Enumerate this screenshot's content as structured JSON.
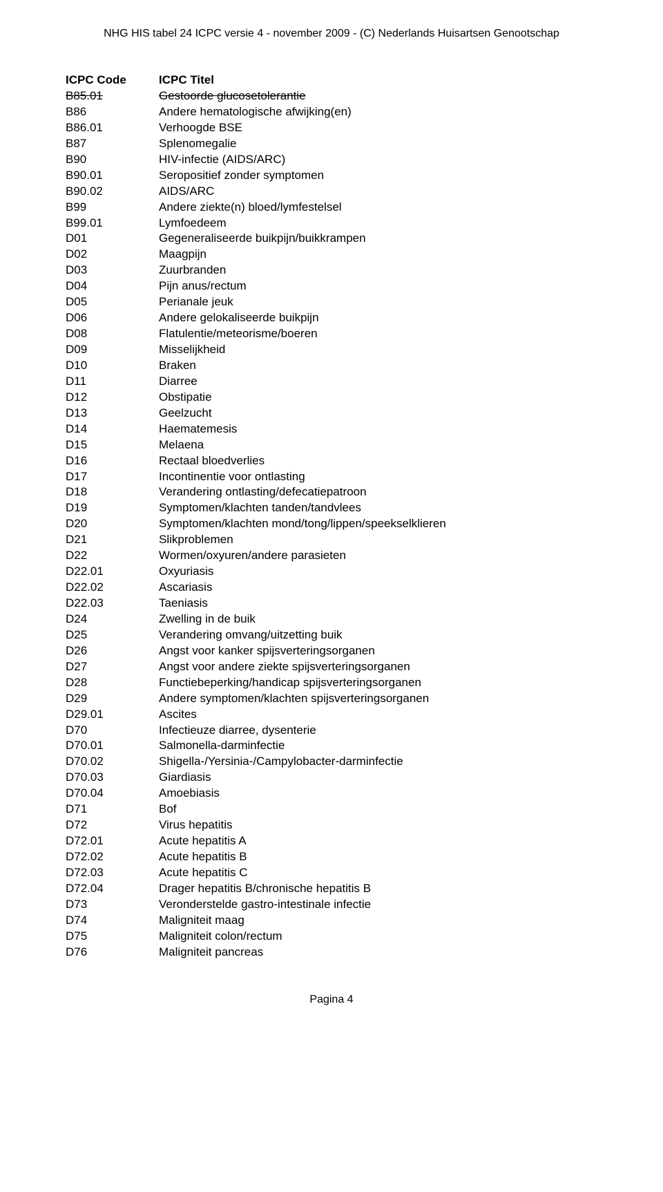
{
  "header": "NHG HIS tabel 24 ICPC versie 4 - november 2009 - (C) Nederlands Huisartsen Genootschap",
  "columns": {
    "code": "ICPC Code",
    "title": "ICPC Titel"
  },
  "rows": [
    {
      "code": "B85.01",
      "title": "Gestoorde glucosetolerantie",
      "strike": true
    },
    {
      "code": "B86",
      "title": "Andere hematologische afwijking(en)"
    },
    {
      "code": "B86.01",
      "title": "Verhoogde BSE"
    },
    {
      "code": "B87",
      "title": "Splenomegalie"
    },
    {
      "code": "B90",
      "title": "HIV-infectie (AIDS/ARC)"
    },
    {
      "code": "B90.01",
      "title": "Seropositief zonder symptomen"
    },
    {
      "code": "B90.02",
      "title": "AIDS/ARC"
    },
    {
      "code": "B99",
      "title": "Andere ziekte(n) bloed/lymfestelsel"
    },
    {
      "code": "B99.01",
      "title": "Lymfoedeem"
    },
    {
      "code": "D01",
      "title": "Gegeneraliseerde buikpijn/buikkrampen"
    },
    {
      "code": "D02",
      "title": "Maagpijn"
    },
    {
      "code": "D03",
      "title": "Zuurbranden"
    },
    {
      "code": "D04",
      "title": "Pijn anus/rectum"
    },
    {
      "code": "D05",
      "title": "Perianale jeuk"
    },
    {
      "code": "D06",
      "title": "Andere gelokaliseerde buikpijn"
    },
    {
      "code": "D08",
      "title": "Flatulentie/meteorisme/boeren"
    },
    {
      "code": "D09",
      "title": "Misselijkheid"
    },
    {
      "code": "D10",
      "title": "Braken"
    },
    {
      "code": "D11",
      "title": "Diarree"
    },
    {
      "code": "D12",
      "title": "Obstipatie"
    },
    {
      "code": "D13",
      "title": "Geelzucht"
    },
    {
      "code": "D14",
      "title": "Haematemesis"
    },
    {
      "code": "D15",
      "title": "Melaena"
    },
    {
      "code": "D16",
      "title": "Rectaal bloedverlies"
    },
    {
      "code": "D17",
      "title": "Incontinentie voor ontlasting"
    },
    {
      "code": "D18",
      "title": "Verandering ontlasting/defecatiepatroon"
    },
    {
      "code": "D19",
      "title": "Symptomen/klachten tanden/tandvlees"
    },
    {
      "code": "D20",
      "title": "Symptomen/klachten mond/tong/lippen/speekselklieren"
    },
    {
      "code": "D21",
      "title": "Slikproblemen"
    },
    {
      "code": "D22",
      "title": "Wormen/oxyuren/andere parasieten"
    },
    {
      "code": "D22.01",
      "title": "Oxyuriasis"
    },
    {
      "code": "D22.02",
      "title": "Ascariasis"
    },
    {
      "code": "D22.03",
      "title": "Taeniasis"
    },
    {
      "code": "D24",
      "title": "Zwelling in de buik"
    },
    {
      "code": "D25",
      "title": "Verandering omvang/uitzetting buik"
    },
    {
      "code": "D26",
      "title": "Angst voor kanker spijsverteringsorganen"
    },
    {
      "code": "D27",
      "title": "Angst voor andere ziekte spijsverteringsorganen"
    },
    {
      "code": "D28",
      "title": "Functiebeperking/handicap spijsverteringsorganen"
    },
    {
      "code": "D29",
      "title": "Andere symptomen/klachten spijsverteringsorganen"
    },
    {
      "code": "D29.01",
      "title": "Ascites"
    },
    {
      "code": "D70",
      "title": "Infectieuze diarree, dysenterie"
    },
    {
      "code": "D70.01",
      "title": "Salmonella-darminfectie"
    },
    {
      "code": "D70.02",
      "title": "Shigella-/Yersinia-/Campylobacter-darminfectie"
    },
    {
      "code": "D70.03",
      "title": "Giardiasis"
    },
    {
      "code": "D70.04",
      "title": "Amoebiasis"
    },
    {
      "code": "D71",
      "title": "Bof"
    },
    {
      "code": "D72",
      "title": "Virus hepatitis"
    },
    {
      "code": "D72.01",
      "title": "Acute hepatitis A"
    },
    {
      "code": "D72.02",
      "title": "Acute hepatitis B"
    },
    {
      "code": "D72.03",
      "title": "Acute hepatitis C"
    },
    {
      "code": "D72.04",
      "title": "Drager hepatitis B/chronische hepatitis B"
    },
    {
      "code": "D73",
      "title": "Veronderstelde gastro-intestinale infectie"
    },
    {
      "code": "D74",
      "title": "Maligniteit maag"
    },
    {
      "code": "D75",
      "title": "Maligniteit colon/rectum"
    },
    {
      "code": "D76",
      "title": "Maligniteit pancreas"
    }
  ],
  "footer": "Pagina 4"
}
